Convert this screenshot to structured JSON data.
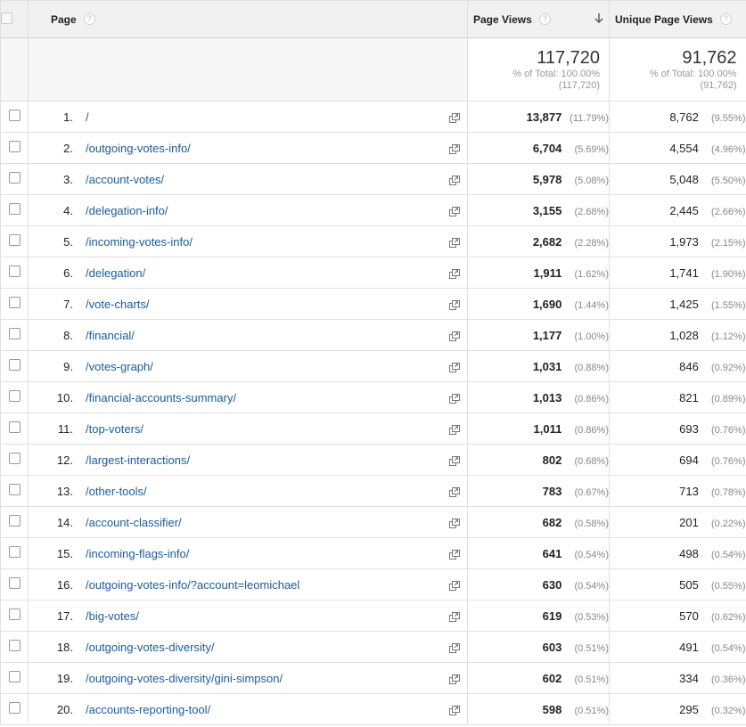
{
  "header": {
    "page_label": "Page",
    "page_views_label": "Page Views",
    "unique_page_views_label": "Unique Page Views",
    "help_glyph": "?",
    "sort_glyph": "🡓"
  },
  "totals": {
    "page_views": {
      "value": "117,720",
      "pct_line": "% of Total: 100.00%",
      "abs_line": "(117,720)"
    },
    "unique_page_views": {
      "value": "91,762",
      "pct_line": "% of Total: 100.00%",
      "abs_line": "(91,762)"
    }
  },
  "rows": [
    {
      "index": "1.",
      "page": "/",
      "pv": "13,877",
      "pv_pct": "(11.79%)",
      "upv": "8,762",
      "upv_pct": "(9.55%)"
    },
    {
      "index": "2.",
      "page": "/outgoing-votes-info/",
      "pv": "6,704",
      "pv_pct": "(5.69%)",
      "upv": "4,554",
      "upv_pct": "(4.96%)"
    },
    {
      "index": "3.",
      "page": "/account-votes/",
      "pv": "5,978",
      "pv_pct": "(5.08%)",
      "upv": "5,048",
      "upv_pct": "(5.50%)"
    },
    {
      "index": "4.",
      "page": "/delegation-info/",
      "pv": "3,155",
      "pv_pct": "(2.68%)",
      "upv": "2,445",
      "upv_pct": "(2.66%)"
    },
    {
      "index": "5.",
      "page": "/incoming-votes-info/",
      "pv": "2,682",
      "pv_pct": "(2.28%)",
      "upv": "1,973",
      "upv_pct": "(2.15%)"
    },
    {
      "index": "6.",
      "page": "/delegation/",
      "pv": "1,911",
      "pv_pct": "(1.62%)",
      "upv": "1,741",
      "upv_pct": "(1.90%)"
    },
    {
      "index": "7.",
      "page": "/vote-charts/",
      "pv": "1,690",
      "pv_pct": "(1.44%)",
      "upv": "1,425",
      "upv_pct": "(1.55%)"
    },
    {
      "index": "8.",
      "page": "/financial/",
      "pv": "1,177",
      "pv_pct": "(1.00%)",
      "upv": "1,028",
      "upv_pct": "(1.12%)"
    },
    {
      "index": "9.",
      "page": "/votes-graph/",
      "pv": "1,031",
      "pv_pct": "(0.88%)",
      "upv": "846",
      "upv_pct": "(0.92%)"
    },
    {
      "index": "10.",
      "page": "/financial-accounts-summary/",
      "pv": "1,013",
      "pv_pct": "(0.86%)",
      "upv": "821",
      "upv_pct": "(0.89%)"
    },
    {
      "index": "11.",
      "page": "/top-voters/",
      "pv": "1,011",
      "pv_pct": "(0.86%)",
      "upv": "693",
      "upv_pct": "(0.76%)"
    },
    {
      "index": "12.",
      "page": "/largest-interactions/",
      "pv": "802",
      "pv_pct": "(0.68%)",
      "upv": "694",
      "upv_pct": "(0.76%)"
    },
    {
      "index": "13.",
      "page": "/other-tools/",
      "pv": "783",
      "pv_pct": "(0.67%)",
      "upv": "713",
      "upv_pct": "(0.78%)"
    },
    {
      "index": "14.",
      "page": "/account-classifier/",
      "pv": "682",
      "pv_pct": "(0.58%)",
      "upv": "201",
      "upv_pct": "(0.22%)"
    },
    {
      "index": "15.",
      "page": "/incoming-flags-info/",
      "pv": "641",
      "pv_pct": "(0.54%)",
      "upv": "498",
      "upv_pct": "(0.54%)"
    },
    {
      "index": "16.",
      "page": "/outgoing-votes-info/?account=leomichael",
      "pv": "630",
      "pv_pct": "(0.54%)",
      "upv": "505",
      "upv_pct": "(0.55%)"
    },
    {
      "index": "17.",
      "page": "/big-votes/",
      "pv": "619",
      "pv_pct": "(0.53%)",
      "upv": "570",
      "upv_pct": "(0.62%)"
    },
    {
      "index": "18.",
      "page": "/outgoing-votes-diversity/",
      "pv": "603",
      "pv_pct": "(0.51%)",
      "upv": "491",
      "upv_pct": "(0.54%)"
    },
    {
      "index": "19.",
      "page": "/outgoing-votes-diversity/gini-simpson/",
      "pv": "602",
      "pv_pct": "(0.51%)",
      "upv": "334",
      "upv_pct": "(0.36%)"
    },
    {
      "index": "20.",
      "page": "/accounts-reporting-tool/",
      "pv": "598",
      "pv_pct": "(0.51%)",
      "upv": "295",
      "upv_pct": "(0.32%)"
    }
  ],
  "icons": {
    "help": "help-circle-icon",
    "sort": "sort-descending-icon",
    "external": "open-in-new-window-icon",
    "checkbox": "checkbox-icon"
  },
  "colors": {
    "link": "#1a5b9e",
    "header_bg": "#f1f1f1",
    "muted_text": "#888888"
  }
}
